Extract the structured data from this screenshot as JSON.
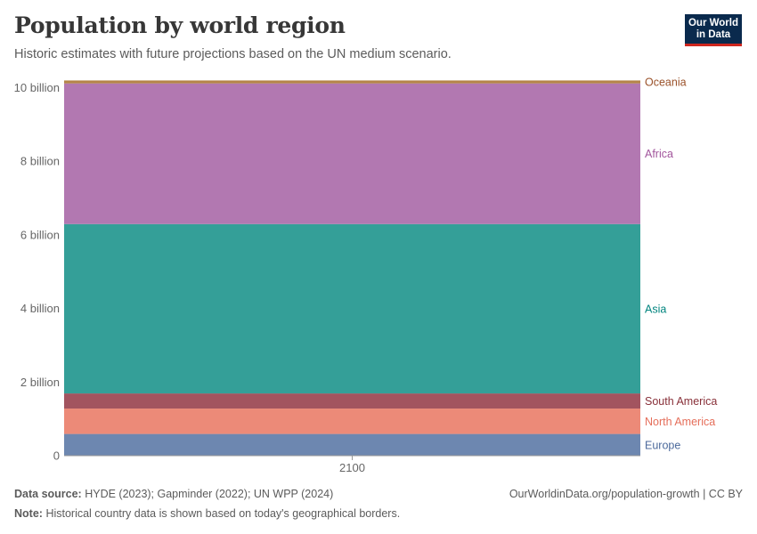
{
  "header": {
    "title": "Population by world region",
    "subtitle": "Historic estimates with future projections based on the UN medium scenario."
  },
  "logo": {
    "line1": "Our World",
    "line2": "in Data"
  },
  "footer": {
    "source_label": "Data source:",
    "source_text": "HYDE (2023); Gapminder (2022); UN WPP (2024)",
    "note_label": "Note:",
    "note_text": "Historical country data is shown based on today's geographical borders.",
    "credit": "OurWorldinData.org/population-growth | CC BY"
  },
  "chart_data": {
    "type": "area",
    "title": "Population by world region",
    "x": [
      "2100"
    ],
    "ylim": [
      0,
      10200000000
    ],
    "yticks": [
      {
        "value": 0,
        "label": "0"
      },
      {
        "value": 2000000000,
        "label": "2 billion"
      },
      {
        "value": 4000000000,
        "label": "4 billion"
      },
      {
        "value": 6000000000,
        "label": "6 billion"
      },
      {
        "value": 8000000000,
        "label": "8 billion"
      },
      {
        "value": 10000000000,
        "label": "10 billion"
      }
    ],
    "grid": true,
    "stacked": true,
    "series": [
      {
        "name": "Europe",
        "values": [
          590000000
        ],
        "color": "#6d87b0",
        "label_color": "#4c6a9c"
      },
      {
        "name": "North America",
        "values": [
          690000000
        ],
        "color": "#ec8a78",
        "label_color": "#e56e5a"
      },
      {
        "name": "South America",
        "values": [
          410000000
        ],
        "color": "#a2545f",
        "label_color": "#883039"
      },
      {
        "name": "Asia",
        "values": [
          4600000000
        ],
        "color": "#349f98",
        "label_color": "#00847e"
      },
      {
        "name": "Africa",
        "values": [
          3820000000
        ],
        "color": "#b278b1",
        "label_color": "#a2559c"
      },
      {
        "name": "Oceania",
        "values": [
          80000000
        ],
        "color": "#b48449",
        "label_color": "#9a5129"
      }
    ]
  }
}
